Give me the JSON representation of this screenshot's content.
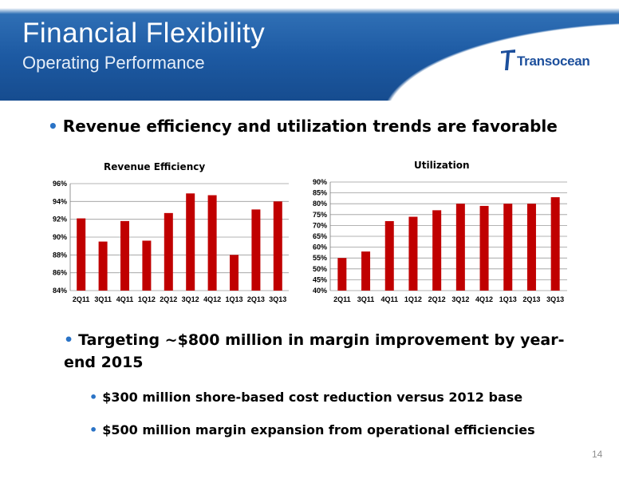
{
  "header": {
    "title": "Financial Flexibility",
    "subtitle": "Operating Performance",
    "logo_text": "Transocean"
  },
  "bullets": {
    "main": "Revenue efficiency and utilization trends are favorable",
    "targeting": "Targeting ~$800 million in margin improvement by year-end 2015",
    "sub1": "$300 million shore-based cost reduction versus 2012 base",
    "sub2": "$500 million margin expansion from operational efficiencies"
  },
  "page_number": "14",
  "colors": {
    "bar": "#c00000",
    "accent": "#2a73c6",
    "header_blue": "#1d5aa3"
  },
  "chart_data": [
    {
      "type": "bar",
      "title": "Revenue Efficiency",
      "categories": [
        "2Q11",
        "3Q11",
        "4Q11",
        "1Q12",
        "2Q12",
        "3Q12",
        "4Q12",
        "1Q13",
        "2Q13",
        "3Q13"
      ],
      "values": [
        92.1,
        89.5,
        91.8,
        89.6,
        92.7,
        94.9,
        94.7,
        88.0,
        93.1,
        94.0
      ],
      "ylim": [
        84,
        96
      ],
      "yticks": [
        84,
        86,
        88,
        90,
        92,
        94,
        96
      ],
      "ytick_labels": [
        "84%",
        "86%",
        "88%",
        "90%",
        "92%",
        "94%",
        "96%"
      ],
      "grid": true,
      "legend": "none"
    },
    {
      "type": "bar",
      "title": "Utilization",
      "categories": [
        "2Q11",
        "3Q11",
        "4Q11",
        "1Q12",
        "2Q12",
        "3Q12",
        "4Q12",
        "1Q13",
        "2Q13",
        "3Q13"
      ],
      "values": [
        55,
        58,
        72,
        74,
        77,
        80,
        79,
        80,
        80,
        83
      ],
      "ylim": [
        40,
        90
      ],
      "yticks": [
        40,
        45,
        50,
        55,
        60,
        65,
        70,
        75,
        80,
        85,
        90
      ],
      "ytick_labels": [
        "40%",
        "45%",
        "50%",
        "55%",
        "60%",
        "65%",
        "70%",
        "75%",
        "80%",
        "85%",
        "90%"
      ],
      "grid": true,
      "legend": "none"
    }
  ]
}
